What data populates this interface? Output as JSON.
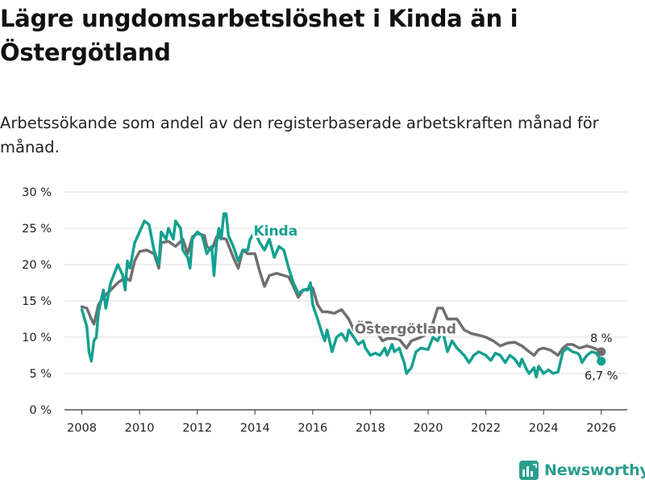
{
  "title": "Lägre ungdomsarbetslöshet i Kinda än i Östergötland",
  "subtitle": "Arbetssökande som andel av den registerbaserade arbetskraften månad för månad.",
  "brand": {
    "name": "Newsworthy",
    "icon": "newsworthy-logo-icon",
    "color": "#2a9d8f"
  },
  "chart_data": {
    "type": "line",
    "title": "Lägre ungdomsarbetslöshet i Kinda än i Östergötland",
    "xlabel": "",
    "ylabel": "",
    "xlim": [
      2007.4,
      2026.9
    ],
    "ylim": [
      0,
      30
    ],
    "grid": true,
    "x_ticks": [
      2008,
      2010,
      2012,
      2014,
      2016,
      2018,
      2020,
      2022,
      2024,
      2026
    ],
    "x_tick_labels": [
      "2008",
      "2010",
      "2012",
      "2014",
      "2016",
      "2018",
      "2020",
      "2022",
      "2024",
      "2026"
    ],
    "y_ticks": [
      0,
      5,
      10,
      15,
      20,
      25,
      30
    ],
    "y_tick_labels": [
      "0 %",
      "5 %",
      "10 %",
      "15 %",
      "20 %",
      "25 %",
      "30 %"
    ],
    "series": [
      {
        "name": "Östergötland",
        "color": "#6f6f6f",
        "label": "Östergötland",
        "end_label": "8 %",
        "end_value": 8.0,
        "points": [
          [
            2008.0,
            14.2
          ],
          [
            2008.17,
            14.0
          ],
          [
            2008.33,
            12.5
          ],
          [
            2008.42,
            11.8
          ],
          [
            2008.58,
            14.5
          ],
          [
            2008.75,
            15.5
          ],
          [
            2009.0,
            16.5
          ],
          [
            2009.25,
            17.5
          ],
          [
            2009.5,
            18.2
          ],
          [
            2009.67,
            17.8
          ],
          [
            2009.83,
            20.5
          ],
          [
            2010.0,
            21.8
          ],
          [
            2010.25,
            22.0
          ],
          [
            2010.5,
            21.5
          ],
          [
            2010.67,
            19.5
          ],
          [
            2010.75,
            23.0
          ],
          [
            2011.0,
            23.2
          ],
          [
            2011.25,
            22.5
          ],
          [
            2011.5,
            23.5
          ],
          [
            2011.67,
            21.5
          ],
          [
            2011.83,
            23.8
          ],
          [
            2012.0,
            24.3
          ],
          [
            2012.25,
            24.0
          ],
          [
            2012.33,
            22.5
          ],
          [
            2012.5,
            22.0
          ],
          [
            2012.67,
            23.8
          ],
          [
            2013.0,
            23.5
          ],
          [
            2013.25,
            21.0
          ],
          [
            2013.42,
            19.5
          ],
          [
            2013.58,
            22.0
          ],
          [
            2013.75,
            21.5
          ],
          [
            2014.0,
            21.5
          ],
          [
            2014.17,
            19.0
          ],
          [
            2014.33,
            17.0
          ],
          [
            2014.5,
            18.5
          ],
          [
            2014.75,
            18.8
          ],
          [
            2015.0,
            18.5
          ],
          [
            2015.17,
            18.3
          ],
          [
            2015.33,
            17.0
          ],
          [
            2015.5,
            15.5
          ],
          [
            2015.67,
            16.5
          ],
          [
            2016.0,
            16.8
          ],
          [
            2016.17,
            14.5
          ],
          [
            2016.33,
            13.5
          ],
          [
            2016.5,
            13.5
          ],
          [
            2016.75,
            13.3
          ],
          [
            2017.0,
            13.8
          ],
          [
            2017.25,
            12.5
          ],
          [
            2017.42,
            11.0
          ],
          [
            2017.58,
            11.8
          ],
          [
            2017.83,
            12.0
          ],
          [
            2018.0,
            12.0
          ],
          [
            2018.25,
            10.5
          ],
          [
            2018.42,
            9.5
          ],
          [
            2018.58,
            9.8
          ],
          [
            2018.83,
            9.8
          ],
          [
            2019.0,
            9.7
          ],
          [
            2019.25,
            8.5
          ],
          [
            2019.42,
            9.5
          ],
          [
            2019.75,
            10.0
          ],
          [
            2020.0,
            10.5
          ],
          [
            2020.17,
            12.0
          ],
          [
            2020.33,
            14.0
          ],
          [
            2020.5,
            14.0
          ],
          [
            2020.67,
            12.5
          ],
          [
            2020.83,
            12.5
          ],
          [
            2021.0,
            12.5
          ],
          [
            2021.25,
            11.0
          ],
          [
            2021.5,
            10.5
          ],
          [
            2021.83,
            10.2
          ],
          [
            2022.0,
            10.0
          ],
          [
            2022.25,
            9.5
          ],
          [
            2022.5,
            8.8
          ],
          [
            2022.75,
            9.2
          ],
          [
            2023.0,
            9.3
          ],
          [
            2023.25,
            8.8
          ],
          [
            2023.5,
            8.0
          ],
          [
            2023.67,
            7.5
          ],
          [
            2023.83,
            8.3
          ],
          [
            2024.0,
            8.5
          ],
          [
            2024.25,
            8.2
          ],
          [
            2024.5,
            7.5
          ],
          [
            2024.67,
            8.5
          ],
          [
            2024.83,
            9.0
          ],
          [
            2025.0,
            9.0
          ],
          [
            2025.25,
            8.5
          ],
          [
            2025.5,
            8.8
          ],
          [
            2025.75,
            8.5
          ],
          [
            2026.0,
            8.0
          ]
        ]
      },
      {
        "name": "Kinda",
        "color": "#14a090",
        "label": "Kinda",
        "end_label": "6,7 %",
        "end_value": 6.7,
        "points": [
          [
            2008.0,
            13.8
          ],
          [
            2008.17,
            11.5
          ],
          [
            2008.25,
            8.0
          ],
          [
            2008.33,
            6.7
          ],
          [
            2008.42,
            9.5
          ],
          [
            2008.5,
            10.0
          ],
          [
            2008.58,
            13.5
          ],
          [
            2008.75,
            16.5
          ],
          [
            2008.83,
            14.0
          ],
          [
            2009.0,
            17.5
          ],
          [
            2009.25,
            20.0
          ],
          [
            2009.42,
            18.5
          ],
          [
            2009.5,
            16.5
          ],
          [
            2009.58,
            20.5
          ],
          [
            2009.67,
            19.5
          ],
          [
            2009.83,
            23.0
          ],
          [
            2010.0,
            24.5
          ],
          [
            2010.17,
            26.0
          ],
          [
            2010.33,
            25.5
          ],
          [
            2010.5,
            22.0
          ],
          [
            2010.67,
            20.0
          ],
          [
            2010.75,
            24.5
          ],
          [
            2010.92,
            23.5
          ],
          [
            2011.0,
            25.0
          ],
          [
            2011.17,
            23.5
          ],
          [
            2011.25,
            26.0
          ],
          [
            2011.42,
            25.0
          ],
          [
            2011.5,
            22.0
          ],
          [
            2011.67,
            21.0
          ],
          [
            2011.75,
            19.5
          ],
          [
            2011.83,
            23.5
          ],
          [
            2012.0,
            24.5
          ],
          [
            2012.17,
            24.0
          ],
          [
            2012.33,
            21.5
          ],
          [
            2012.5,
            22.5
          ],
          [
            2012.58,
            18.5
          ],
          [
            2012.67,
            23.0
          ],
          [
            2012.75,
            25.0
          ],
          [
            2012.83,
            23.5
          ],
          [
            2012.92,
            27.0
          ],
          [
            2013.0,
            27.0
          ],
          [
            2013.08,
            24.0
          ],
          [
            2013.25,
            22.5
          ],
          [
            2013.42,
            20.5
          ],
          [
            2013.58,
            22.0
          ],
          [
            2013.75,
            22.0
          ],
          [
            2013.83,
            23.5
          ],
          [
            2014.0,
            24.5
          ],
          [
            2014.17,
            23.0
          ],
          [
            2014.33,
            22.0
          ],
          [
            2014.5,
            23.5
          ],
          [
            2014.67,
            21.0
          ],
          [
            2014.83,
            22.5
          ],
          [
            2015.0,
            22.0
          ],
          [
            2015.17,
            19.5
          ],
          [
            2015.33,
            17.5
          ],
          [
            2015.5,
            16.0
          ],
          [
            2015.67,
            16.5
          ],
          [
            2015.83,
            16.5
          ],
          [
            2015.92,
            17.5
          ],
          [
            2016.0,
            14.5
          ],
          [
            2016.17,
            12.5
          ],
          [
            2016.33,
            10.5
          ],
          [
            2016.42,
            9.5
          ],
          [
            2016.5,
            11.0
          ],
          [
            2016.67,
            8.0
          ],
          [
            2016.83,
            10.0
          ],
          [
            2017.0,
            10.5
          ],
          [
            2017.17,
            9.5
          ],
          [
            2017.25,
            11.0
          ],
          [
            2017.42,
            10.0
          ],
          [
            2017.58,
            9.0
          ],
          [
            2017.75,
            9.5
          ],
          [
            2017.83,
            8.5
          ],
          [
            2018.0,
            7.5
          ],
          [
            2018.17,
            7.8
          ],
          [
            2018.33,
            7.5
          ],
          [
            2018.5,
            8.5
          ],
          [
            2018.58,
            7.5
          ],
          [
            2018.75,
            9.0
          ],
          [
            2018.83,
            8.0
          ],
          [
            2019.0,
            8.5
          ],
          [
            2019.08,
            7.5
          ],
          [
            2019.17,
            6.5
          ],
          [
            2019.25,
            5.0
          ],
          [
            2019.42,
            5.8
          ],
          [
            2019.58,
            8.0
          ],
          [
            2019.75,
            8.5
          ],
          [
            2020.0,
            8.3
          ],
          [
            2020.17,
            10.0
          ],
          [
            2020.33,
            9.5
          ],
          [
            2020.5,
            11.0
          ],
          [
            2020.67,
            8.0
          ],
          [
            2020.83,
            9.5
          ],
          [
            2021.0,
            8.5
          ],
          [
            2021.25,
            7.5
          ],
          [
            2021.42,
            6.5
          ],
          [
            2021.58,
            7.5
          ],
          [
            2021.75,
            8.0
          ],
          [
            2022.0,
            7.5
          ],
          [
            2022.17,
            6.8
          ],
          [
            2022.33,
            7.8
          ],
          [
            2022.5,
            7.5
          ],
          [
            2022.67,
            6.5
          ],
          [
            2022.83,
            7.5
          ],
          [
            2023.0,
            7.0
          ],
          [
            2023.17,
            6.0
          ],
          [
            2023.25,
            7.0
          ],
          [
            2023.42,
            5.5
          ],
          [
            2023.5,
            5.0
          ],
          [
            2023.67,
            5.8
          ],
          [
            2023.75,
            4.5
          ],
          [
            2023.83,
            6.0
          ],
          [
            2024.0,
            5.0
          ],
          [
            2024.17,
            5.5
          ],
          [
            2024.33,
            5.0
          ],
          [
            2024.5,
            5.2
          ],
          [
            2024.67,
            8.0
          ],
          [
            2024.83,
            8.5
          ],
          [
            2025.0,
            8.0
          ],
          [
            2025.17,
            7.8
          ],
          [
            2025.25,
            7.5
          ],
          [
            2025.33,
            6.5
          ],
          [
            2025.5,
            7.5
          ],
          [
            2025.67,
            8.0
          ],
          [
            2025.83,
            7.8
          ],
          [
            2026.0,
            6.7
          ]
        ]
      }
    ]
  }
}
